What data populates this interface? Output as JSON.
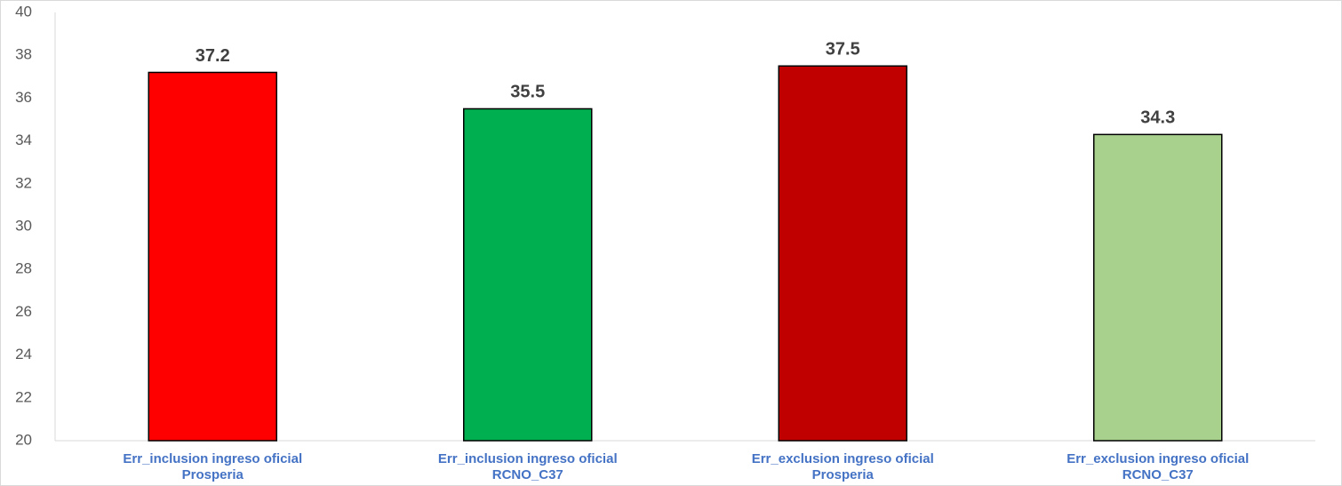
{
  "chart_data": {
    "type": "bar",
    "categories": [
      "Err_inclusion ingreso oficial\nProsperia",
      "Err_inclusion ingreso oficial\nRCNO_C37",
      "Err_exclusion ingreso oficial\nProsperia",
      "Err_exclusion ingreso oficial\nRCNO_C37"
    ],
    "values": [
      37.2,
      35.5,
      37.5,
      34.3
    ],
    "colors": [
      "#ff0000",
      "#00b050",
      "#c00000",
      "#a9d18e"
    ],
    "ylim": [
      20,
      40
    ],
    "yticks": [
      20,
      22,
      24,
      26,
      28,
      30,
      32,
      34,
      36,
      38,
      40
    ]
  }
}
